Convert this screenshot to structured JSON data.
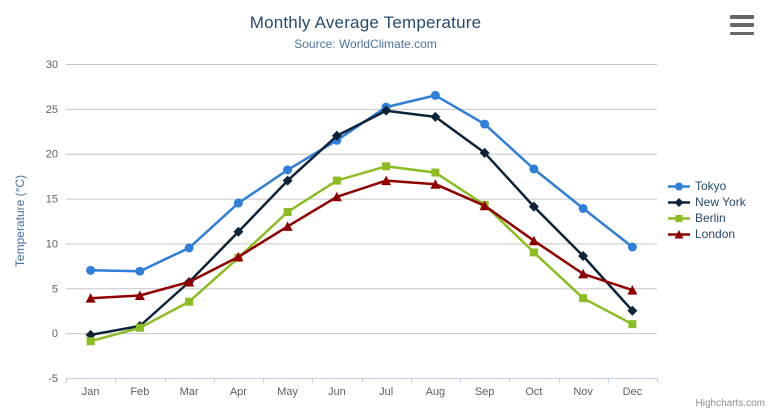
{
  "credits_label": "Highcharts.com",
  "export_menu": {
    "icon": "hamburger-icon"
  },
  "chart_data": {
    "type": "line",
    "title": "Monthly Average Temperature",
    "subtitle": "Source: WorldClimate.com",
    "categories": [
      "Jan",
      "Feb",
      "Mar",
      "Apr",
      "May",
      "Jun",
      "Jul",
      "Aug",
      "Sep",
      "Oct",
      "Nov",
      "Dec"
    ],
    "series": [
      {
        "name": "Tokyo",
        "color": "#2f7ed8",
        "marker": "circle",
        "values": [
          7.0,
          6.9,
          9.5,
          14.5,
          18.2,
          21.5,
          25.2,
          26.5,
          23.3,
          18.3,
          13.9,
          9.6
        ]
      },
      {
        "name": "New York",
        "color": "#0d233a",
        "marker": "diamond",
        "values": [
          -0.2,
          0.8,
          5.7,
          11.3,
          17.0,
          22.0,
          24.8,
          24.1,
          20.1,
          14.1,
          8.6,
          2.5
        ]
      },
      {
        "name": "Berlin",
        "color": "#8bbc21",
        "marker": "square",
        "values": [
          -0.9,
          0.6,
          3.5,
          8.4,
          13.5,
          17.0,
          18.6,
          17.9,
          14.3,
          9.0,
          3.9,
          1.0
        ]
      },
      {
        "name": "London",
        "color": "#910000",
        "marker": "triangle",
        "values": [
          3.9,
          4.2,
          5.7,
          8.5,
          11.9,
          15.2,
          17.0,
          16.6,
          14.2,
          10.3,
          6.6,
          4.8
        ]
      }
    ],
    "xlabel": "",
    "ylabel": "Temperature (°C)",
    "ylim": [
      -5,
      30
    ],
    "ytick_interval": 5,
    "yticks": [
      -5,
      0,
      5,
      10,
      15,
      20,
      25,
      30
    ],
    "grid": true,
    "legend_position": "right",
    "style": {
      "title_color": "#274b6d",
      "subtitle_color": "#4d759e",
      "grid_color": "#c6c6c6",
      "axis_line_color": "#c0d0e0",
      "axis_label_color": "#606060",
      "y_title_color": "#4572a7",
      "legend_text_color": "#274b6d",
      "credits_color": "#909090"
    }
  }
}
